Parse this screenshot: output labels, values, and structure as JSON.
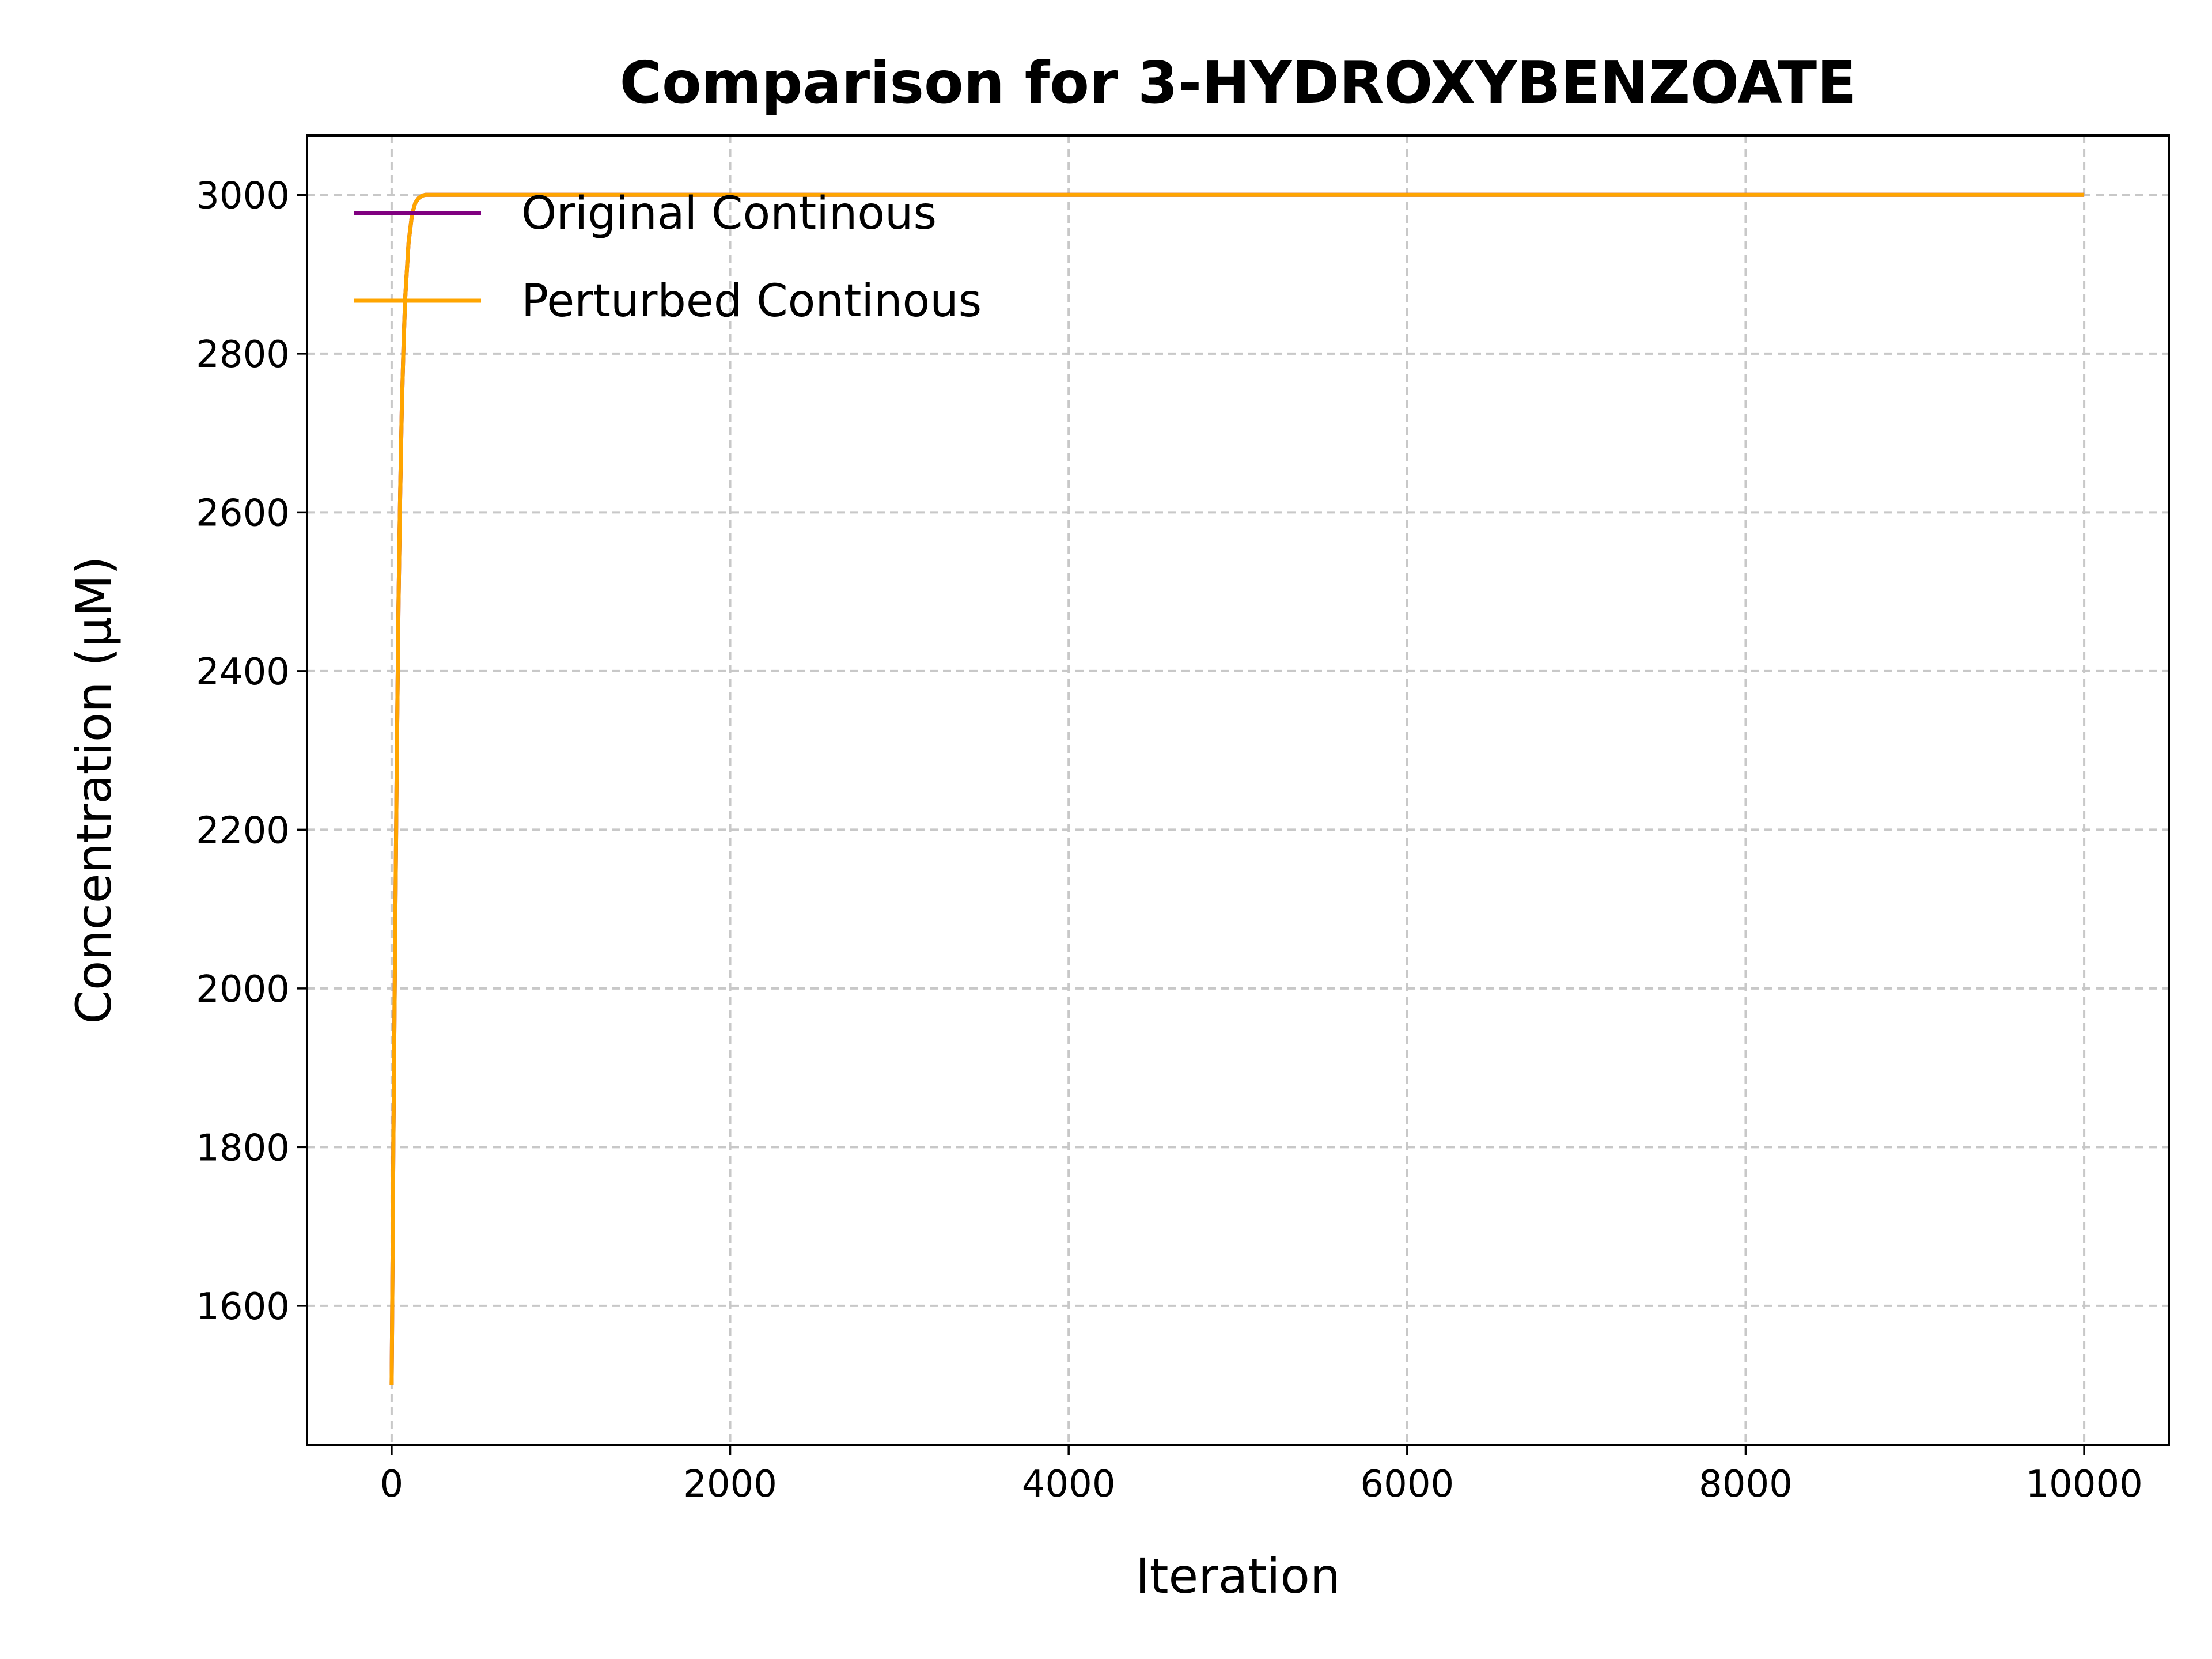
{
  "chart_data": {
    "type": "line",
    "title": "Comparison for 3-HYDROXYBENZOATE",
    "xlabel": "Iteration",
    "ylabel": "Concentration (μM)",
    "xlim": [
      -500,
      10500
    ],
    "ylim": [
      1425,
      3075
    ],
    "xticks": [
      0,
      2000,
      4000,
      6000,
      8000,
      10000
    ],
    "yticks": [
      1600,
      1800,
      2000,
      2200,
      2400,
      2600,
      2800,
      3000
    ],
    "grid": true,
    "legend_position": "upper-left",
    "series": [
      {
        "name": "Original Continous",
        "color": "#800080",
        "x": [
          0,
          5,
          10,
          20,
          30,
          40,
          50,
          60,
          70,
          80,
          100,
          120,
          140,
          160,
          180,
          200,
          300,
          500,
          1000,
          2000,
          4000,
          6000,
          8000,
          10000
        ],
        "y": [
          1500,
          1650,
          1800,
          2050,
          2280,
          2480,
          2620,
          2730,
          2810,
          2870,
          2940,
          2975,
          2990,
          2996,
          2999,
          3000,
          3000,
          3000,
          3000,
          3000,
          3000,
          3000,
          3000,
          3000
        ]
      },
      {
        "name": "Perturbed Continous",
        "color": "#FFA500",
        "x": [
          0,
          5,
          10,
          20,
          30,
          40,
          50,
          60,
          70,
          80,
          100,
          120,
          140,
          160,
          180,
          200,
          300,
          500,
          1000,
          2000,
          4000,
          6000,
          8000,
          10000
        ],
        "y": [
          1500,
          1650,
          1800,
          2050,
          2280,
          2480,
          2620,
          2730,
          2810,
          2870,
          2940,
          2975,
          2990,
          2996,
          2999,
          3000,
          3000,
          3000,
          3000,
          3000,
          3000,
          3000,
          3000,
          3000
        ]
      }
    ]
  }
}
